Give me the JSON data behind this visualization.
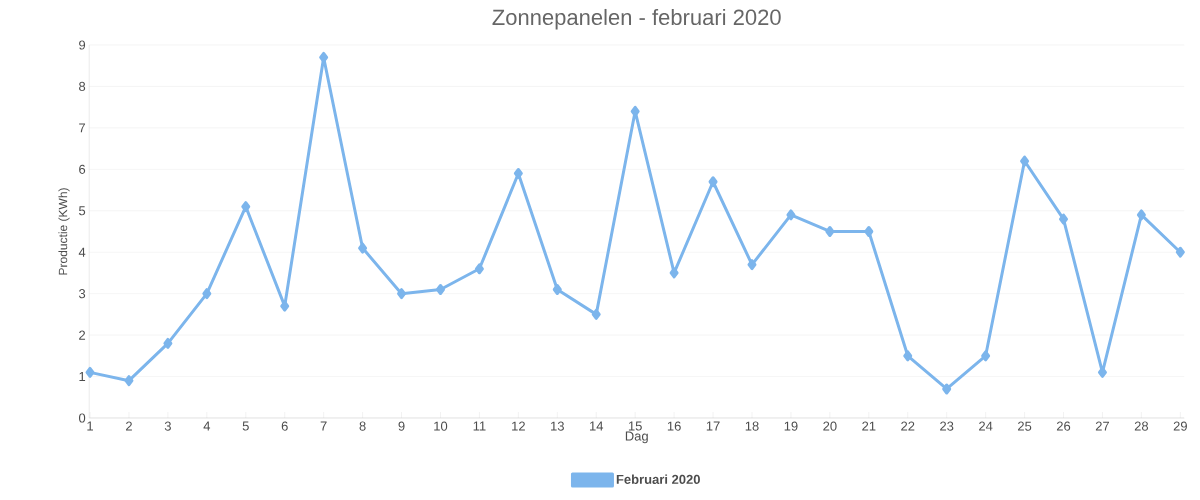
{
  "chart_data": {
    "type": "line",
    "title": "Zonnepanelen - februari 2020",
    "xlabel": "Dag",
    "ylabel": "Productie (KWh)",
    "categories": [
      "1",
      "2",
      "3",
      "4",
      "5",
      "6",
      "7",
      "8",
      "9",
      "10",
      "11",
      "12",
      "13",
      "14",
      "15",
      "16",
      "17",
      "18",
      "19",
      "20",
      "21",
      "22",
      "23",
      "24",
      "25",
      "26",
      "27",
      "28",
      "29"
    ],
    "series": [
      {
        "name": "Februari 2020",
        "color": "#7cb5ec",
        "values": [
          1.1,
          0.9,
          1.8,
          3.0,
          5.1,
          2.7,
          8.7,
          4.1,
          3.0,
          3.1,
          3.6,
          5.9,
          3.1,
          2.5,
          7.4,
          3.5,
          5.7,
          3.7,
          4.9,
          4.5,
          4.5,
          1.5,
          0.7,
          1.5,
          6.2,
          4.8,
          1.1,
          4.9,
          4.0
        ]
      }
    ],
    "ylim": [
      0,
      9
    ],
    "yticks": [
      0,
      1,
      2,
      3,
      4,
      5,
      6,
      7,
      8,
      9
    ],
    "grid": "y",
    "legend": "bottom",
    "marker": "diamond",
    "line_style": "solid"
  }
}
